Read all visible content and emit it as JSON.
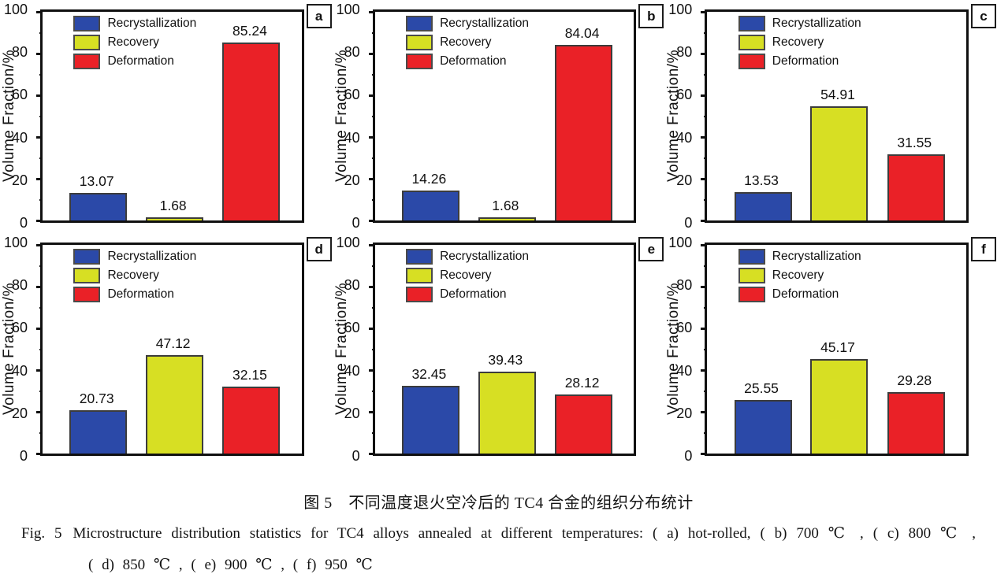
{
  "figure": {
    "caption_zh": "图 5　不同温度退火空冷后的 TC4 合金的组织分布统计",
    "caption_en_prefix": "Fig. 5",
    "caption_en_line1": "Microstructure distribution statistics for TC4 alloys annealed at different temperatures: ( a) hot-rolled, ( b) 700 ℃ , ( c) 800 ℃ ,",
    "caption_en_line2": "( d) 850 ℃ , ( e) 900 ℃ , ( f) 950 ℃"
  },
  "axis": {
    "y_label": "Volume Fraction/%",
    "y_ticks": [
      0,
      20,
      40,
      60,
      80,
      100
    ],
    "y_minor_step": 10,
    "ylim": [
      0,
      100
    ]
  },
  "legend": {
    "position": "upper-left",
    "entries": [
      {
        "label": "Recrystallization",
        "color": "#2b49a8"
      },
      {
        "label": "Recovery",
        "color": "#d7df23"
      },
      {
        "label": "Deformation",
        "color": "#ea2127"
      }
    ]
  },
  "colors": {
    "axis": "#101010",
    "bar_border": "#3c3c3c",
    "background": "#ffffff"
  },
  "chart_data": [
    {
      "type": "bar",
      "panel_letter": "a",
      "condition": "hot-rolled",
      "categories": [
        "Recrystallization",
        "Recovery",
        "Deformation"
      ],
      "values": [
        13.07,
        1.68,
        85.24
      ],
      "value_labels": [
        "13.07",
        "1.68",
        "85.24"
      ],
      "xlabel": "",
      "ylabel": "Volume Fraction/%",
      "ylim": [
        0,
        100
      ],
      "grid": false
    },
    {
      "type": "bar",
      "panel_letter": "b",
      "condition": "700 ℃",
      "categories": [
        "Recrystallization",
        "Recovery",
        "Deformation"
      ],
      "values": [
        14.26,
        1.68,
        84.04
      ],
      "value_labels": [
        "14.26",
        "1.68",
        "84.04"
      ],
      "xlabel": "",
      "ylabel": "Volume Fraction/%",
      "ylim": [
        0,
        100
      ],
      "grid": false
    },
    {
      "type": "bar",
      "panel_letter": "c",
      "condition": "800 ℃",
      "categories": [
        "Recrystallization",
        "Recovery",
        "Deformation"
      ],
      "values": [
        13.53,
        54.91,
        31.55
      ],
      "value_labels": [
        "13.53",
        "54.91",
        "31.55"
      ],
      "xlabel": "",
      "ylabel": "Volume Fraction/%",
      "ylim": [
        0,
        100
      ],
      "grid": false
    },
    {
      "type": "bar",
      "panel_letter": "d",
      "condition": "850 ℃",
      "categories": [
        "Recrystallization",
        "Recovery",
        "Deformation"
      ],
      "values": [
        20.73,
        47.12,
        32.15
      ],
      "value_labels": [
        "20.73",
        "47.12",
        "32.15"
      ],
      "xlabel": "",
      "ylabel": "Volume Fraction/%",
      "ylim": [
        0,
        100
      ],
      "grid": false
    },
    {
      "type": "bar",
      "panel_letter": "e",
      "condition": "900 ℃",
      "categories": [
        "Recrystallization",
        "Recovery",
        "Deformation"
      ],
      "values": [
        32.45,
        39.43,
        28.12
      ],
      "value_labels": [
        "32.45",
        "39.43",
        "28.12"
      ],
      "xlabel": "",
      "ylabel": "Volume Fraction/%",
      "ylim": [
        0,
        100
      ],
      "grid": false
    },
    {
      "type": "bar",
      "panel_letter": "f",
      "condition": "950 ℃",
      "categories": [
        "Recrystallization",
        "Recovery",
        "Deformation"
      ],
      "values": [
        25.55,
        45.17,
        29.28
      ],
      "value_labels": [
        "25.55",
        "45.17",
        "29.28"
      ],
      "xlabel": "",
      "ylabel": "Volume Fraction/%",
      "ylim": [
        0,
        100
      ],
      "grid": false
    }
  ]
}
